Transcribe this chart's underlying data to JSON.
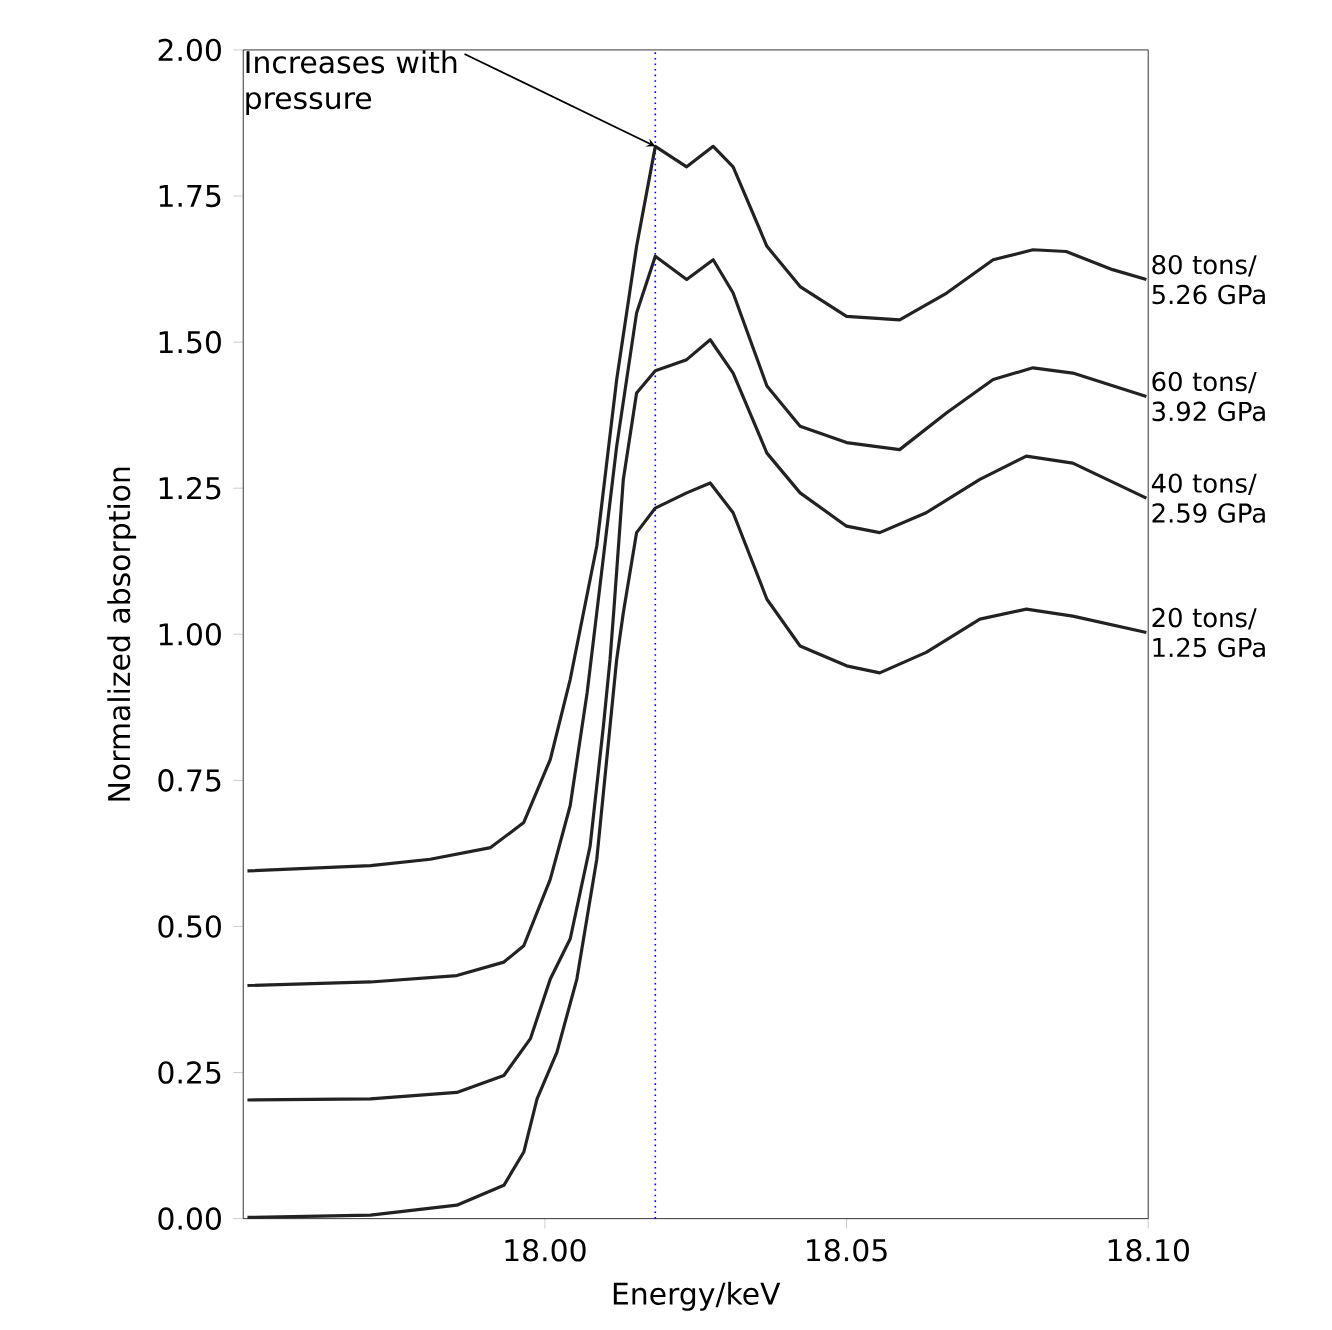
{
  "chart_data": {
    "type": "line",
    "xlabel": "Energy/keV",
    "ylabel": "Normalized absorption",
    "xlim": [
      17.95,
      18.1
    ],
    "ylim": [
      0,
      2.0
    ],
    "xticks": [
      {
        "value": 18.0,
        "label": "18.00"
      },
      {
        "value": 18.05,
        "label": "18.05"
      },
      {
        "value": 18.1,
        "label": "18.10"
      }
    ],
    "yticks": [
      {
        "value": 0,
        "label": "0.00"
      },
      {
        "value": 0.25,
        "label": "0.25"
      },
      {
        "value": 0.5,
        "label": "0.50"
      },
      {
        "value": 0.75,
        "label": "0.75"
      },
      {
        "value": 1.0,
        "label": "1.00"
      },
      {
        "value": 1.25,
        "label": "1.25"
      },
      {
        "value": 1.5,
        "label": "1.50"
      },
      {
        "value": 1.75,
        "label": "1.75"
      },
      {
        "value": 2.0,
        "label": "2.00"
      }
    ],
    "grid": false,
    "legend": false,
    "marker": "none",
    "line_style": "solid",
    "annotations": [
      {
        "text": "Increases with pressure",
        "x": 18.0183,
        "y": 1.835
      }
    ],
    "ref_lines": [
      {
        "axis": "x",
        "value": 18.0183,
        "label": null,
        "color": "#0000ff",
        "line_style": "dotted"
      }
    ],
    "series": [
      {
        "name": "80 tons/ 5.26 GPa",
        "color": "#222222",
        "x": [
          17.9507,
          17.9711,
          17.981,
          17.991,
          17.9965,
          18.0009,
          18.0042,
          18.0086,
          18.0119,
          18.0152,
          18.0183,
          18.0235,
          18.0279,
          18.0312,
          18.0368,
          18.0423,
          18.05,
          18.0588,
          18.0666,
          18.0743,
          18.0809,
          18.0864,
          18.0941,
          18.0997
        ],
        "values": [
          0.595,
          0.604,
          0.615,
          0.635,
          0.678,
          0.786,
          0.923,
          1.151,
          1.436,
          1.664,
          1.835,
          1.8,
          1.835,
          1.8,
          1.664,
          1.595,
          1.544,
          1.538,
          1.584,
          1.641,
          1.658,
          1.655,
          1.624,
          1.607
        ]
      },
      {
        "name": "60 tons/ 3.92 GPa",
        "color": "#222222",
        "x": [
          17.9507,
          17.9711,
          17.9854,
          17.9932,
          17.9965,
          18.0009,
          18.0042,
          18.007,
          18.0086,
          18.0119,
          18.0152,
          18.0183,
          18.0235,
          18.0279,
          18.0312,
          18.0368,
          18.0423,
          18.05,
          18.0588,
          18.0666,
          18.0743,
          18.0809,
          18.0875,
          18.0997
        ],
        "values": [
          0.399,
          0.405,
          0.416,
          0.439,
          0.467,
          0.581,
          0.707,
          0.9,
          1.037,
          1.322,
          1.55,
          1.647,
          1.607,
          1.641,
          1.584,
          1.425,
          1.356,
          1.328,
          1.316,
          1.379,
          1.436,
          1.456,
          1.447,
          1.407
        ]
      },
      {
        "name": "40 tons/ 2.59 GPa",
        "color": "#222222",
        "x": [
          17.9507,
          17.9711,
          17.9854,
          17.9932,
          17.9976,
          18.0009,
          18.0042,
          18.0075,
          18.0097,
          18.0108,
          18.0114,
          18.013,
          18.0152,
          18.0183,
          18.0235,
          18.0274,
          18.0312,
          18.0368,
          18.0423,
          18.05,
          18.0555,
          18.0632,
          18.0721,
          18.0798,
          18.0875,
          18.0997
        ],
        "values": [
          0.203,
          0.205,
          0.216,
          0.245,
          0.308,
          0.41,
          0.479,
          0.638,
          0.843,
          0.957,
          1.037,
          1.265,
          1.413,
          1.451,
          1.47,
          1.504,
          1.447,
          1.31,
          1.242,
          1.185,
          1.174,
          1.208,
          1.265,
          1.305,
          1.293,
          1.233
        ]
      },
      {
        "name": "20 tons/ 1.25 GPa",
        "color": "#222222",
        "x": [
          17.9507,
          17.9711,
          17.9854,
          17.9932,
          17.9965,
          17.9987,
          18.002,
          18.0053,
          18.0086,
          18.0108,
          18.0119,
          18.013,
          18.0152,
          18.0183,
          18.0235,
          18.0274,
          18.0312,
          18.0368,
          18.0423,
          18.05,
          18.0555,
          18.0632,
          18.0721,
          18.0798,
          18.0875,
          18.0997
        ],
        "values": [
          0.002,
          0.006,
          0.023,
          0.057,
          0.114,
          0.205,
          0.285,
          0.41,
          0.615,
          0.843,
          0.957,
          1.037,
          1.174,
          1.216,
          1.242,
          1.259,
          1.208,
          1.06,
          0.98,
          0.946,
          0.934,
          0.969,
          1.026,
          1.043,
          1.031,
          1.003
        ]
      }
    ]
  }
}
